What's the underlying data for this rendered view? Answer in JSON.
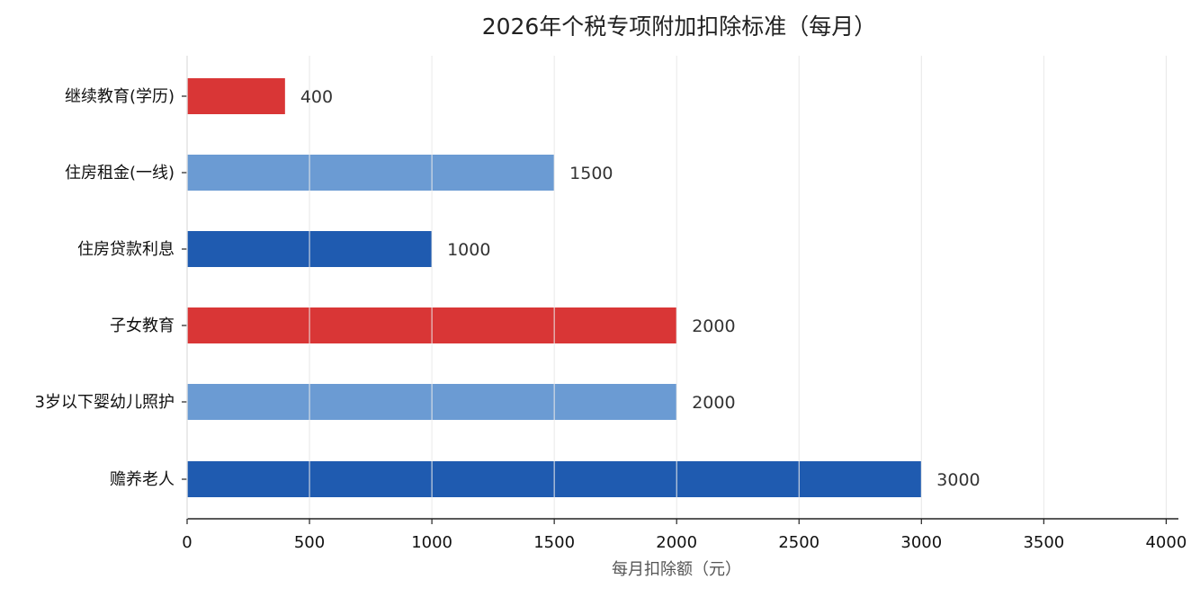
{
  "chart_data": {
    "type": "bar",
    "orientation": "horizontal",
    "title": "2026年个税专项附加扣除标准（每月）",
    "xlabel": "每月扣除额（元）",
    "ylabel": "",
    "xlim": [
      0,
      4050
    ],
    "xticks": [
      0,
      500,
      1000,
      1500,
      2000,
      2500,
      3000,
      3500,
      4000
    ],
    "xtick_labels": [
      "0",
      "500",
      "1000",
      "1500",
      "2000",
      "2500",
      "3000",
      "3500",
      "4000"
    ],
    "grid": "vertical",
    "categories": [
      "继续教育(学历)",
      "住房租金(一线)",
      "住房贷款利息",
      "子女教育",
      "3岁以下婴幼儿照护",
      "赡养老人"
    ],
    "values": [
      400,
      1500,
      1000,
      2000,
      2000,
      3000
    ],
    "value_labels": [
      "400",
      "1500",
      "1000",
      "2000",
      "2000",
      "3000"
    ],
    "colors": [
      "#d93636",
      "#6b9bd3",
      "#1f5bb0",
      "#d93636",
      "#6b9bd3",
      "#1f5bb0"
    ]
  }
}
